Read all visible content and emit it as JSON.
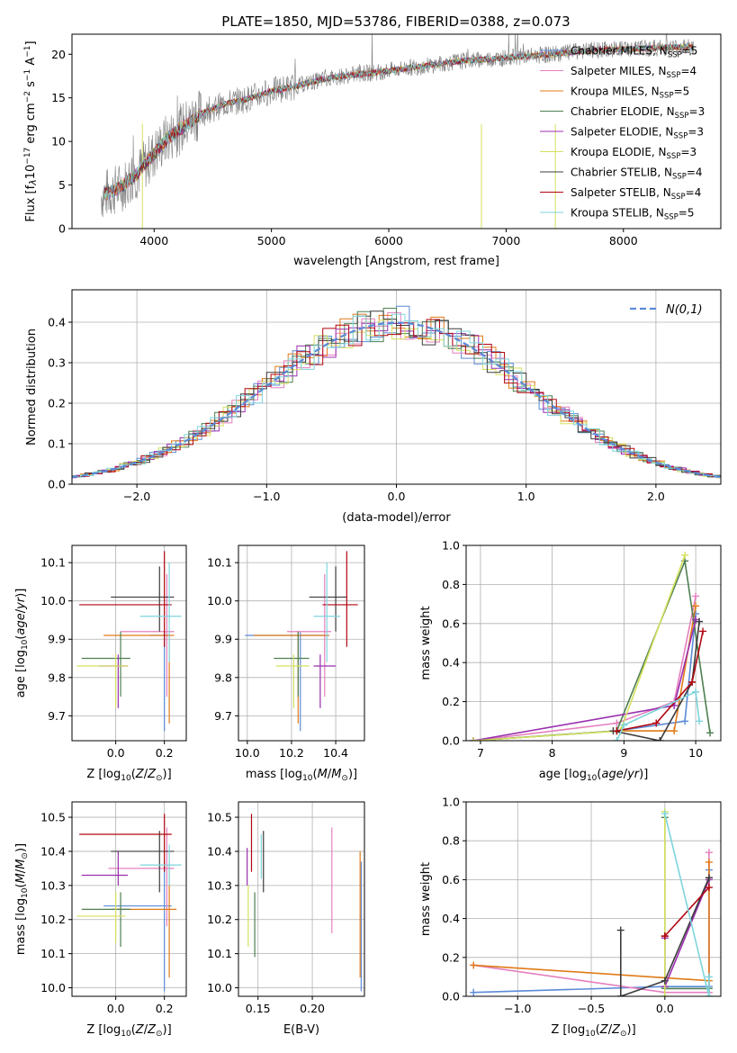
{
  "title": "PLATE=1850, MJD=53786, FIBERID=0388, z=0.073",
  "series": [
    {
      "id": "cm",
      "label": "Chabrier MILES, N",
      "sub": "SSP",
      "suffix": "=5",
      "color": "#5b8bd8"
    },
    {
      "id": "sm",
      "label": "Salpeter MILES, N",
      "sub": "SSP",
      "suffix": "=4",
      "color": "#e57fbe"
    },
    {
      "id": "km",
      "label": "Kroupa MILES, N",
      "sub": "SSP",
      "suffix": "=5",
      "color": "#e07b18"
    },
    {
      "id": "ce",
      "label": "Chabrier ELODIE, N",
      "sub": "SSP",
      "suffix": "=3",
      "color": "#4e7f52"
    },
    {
      "id": "se",
      "label": "Salpeter ELODIE, N",
      "sub": "SSP",
      "suffix": "=3",
      "color": "#9b2fae"
    },
    {
      "id": "ke",
      "label": "Kroupa ELODIE, N",
      "sub": "SSP",
      "suffix": "=3",
      "color": "#d5e05e"
    },
    {
      "id": "cs",
      "label": "Chabrier STELIB, N",
      "sub": "SSP",
      "suffix": "=4",
      "color": "#3c3c3c"
    },
    {
      "id": "ss",
      "label": "Salpeter STELIB, N",
      "sub": "SSP",
      "suffix": "=4",
      "color": "#b1060f"
    },
    {
      "id": "ks",
      "label": "Kroupa STELIB, N",
      "sub": "SSP",
      "suffix": "=5",
      "color": "#7ed5dc"
    }
  ],
  "chart_data": [
    {
      "type": "line",
      "name": "spectrum",
      "xlabel": "wavelength [Angstrom, rest frame]",
      "ylabel": "Flux [f_λ 10^-17 erg cm^-2 s^-1 A^-1]",
      "xlim": [
        3300,
        8830
      ],
      "ylim": [
        0,
        22.3
      ],
      "xticks": [
        4000,
        5000,
        6000,
        7000,
        8000
      ],
      "yticks": [
        0,
        5,
        10,
        15,
        20
      ],
      "grid": false,
      "legend": "right",
      "x": [
        3550,
        3700,
        3850,
        4000,
        4100,
        4250,
        4400,
        4600,
        4800,
        5000,
        5200,
        5400,
        5600,
        5800,
        6000,
        6200,
        6400,
        6600,
        6800,
        7000,
        7200,
        7400,
        7600,
        7800,
        8000,
        8200,
        8400,
        8600
      ],
      "y": [
        3.8,
        4.6,
        6.2,
        8.6,
        10.2,
        11.7,
        13.2,
        14.3,
        14.9,
        15.8,
        16.3,
        17.0,
        17.5,
        17.8,
        18.1,
        18.5,
        18.8,
        19.2,
        19.4,
        19.6,
        19.8,
        20.0,
        20.3,
        20.5,
        20.6,
        20.7,
        20.8,
        20.8
      ]
    },
    {
      "type": "histogram",
      "name": "residuals",
      "xlabel": "(data-model)/error",
      "ylabel": "Normed distribution",
      "xlim": [
        -2.5,
        2.5
      ],
      "ylim": [
        0,
        0.48
      ],
      "xticks": [
        -2,
        -1,
        0,
        1,
        2
      ],
      "yticks": [
        0,
        0.1,
        0.2,
        0.3,
        0.4
      ],
      "grid": true,
      "legend": "top-right",
      "legend_label": "N(0,1)",
      "reference": {
        "name": "N(0,1)",
        "mean": 0,
        "std": 1,
        "color": "#5b8bd8"
      }
    },
    {
      "type": "scatter",
      "name": "age-vs-Z",
      "xlabel": "Z [log10(Z/Z_sun)]",
      "ylabel": "age [log10(age/yr)]",
      "xlim": [
        -0.18,
        0.29
      ],
      "ylim": [
        9.635,
        10.145
      ],
      "xticks": [
        0,
        0.2
      ],
      "yticks": [
        9.7,
        9.8,
        9.9,
        10.0,
        10.1
      ],
      "grid": true,
      "points": [
        {
          "s": "cm",
          "x": 0.2,
          "xe": [
            0.14,
            0.22
          ],
          "y": 9.91,
          "ye": [
            9.66,
            9.92
          ]
        },
        {
          "s": "sm",
          "x": 0.21,
          "xe": [
            0.02,
            0.24
          ],
          "y": 9.92,
          "ye": [
            9.75,
            10.07
          ]
        },
        {
          "s": "km",
          "x": 0.22,
          "xe": [
            -0.05,
            0.24
          ],
          "y": 9.91,
          "ye": [
            9.68,
            9.92
          ]
        },
        {
          "s": "ce",
          "x": 0.02,
          "xe": [
            -0.14,
            0.06
          ],
          "y": 9.85,
          "ye": [
            9.75,
            9.92
          ]
        },
        {
          "s": "se",
          "x": 0.01,
          "xe": [
            -0.07,
            0.05
          ],
          "y": 9.83,
          "ye": [
            9.72,
            9.86
          ]
        },
        {
          "s": "ke",
          "x": 0.0,
          "xe": [
            -0.16,
            0.05
          ],
          "y": 9.83,
          "ye": [
            9.72,
            9.86
          ]
        },
        {
          "s": "cs",
          "x": 0.18,
          "xe": [
            -0.02,
            0.24
          ],
          "y": 10.01,
          "ye": [
            9.92,
            10.09
          ]
        },
        {
          "s": "ss",
          "x": 0.2,
          "xe": [
            -0.15,
            0.23
          ],
          "y": 9.99,
          "ye": [
            9.88,
            10.13
          ]
        },
        {
          "s": "ks",
          "x": 0.22,
          "xe": [
            0.1,
            0.27
          ],
          "y": 9.96,
          "ye": [
            9.84,
            10.1
          ]
        }
      ]
    },
    {
      "type": "scatter",
      "name": "age-vs-mass",
      "xlabel": "mass [log10(M/M_sun)]",
      "ylabel": "",
      "xlim": [
        9.96,
        10.53
      ],
      "ylim": [
        9.635,
        10.145
      ],
      "xticks": [
        10.0,
        10.2,
        10.4
      ],
      "yticks": [
        9.7,
        9.8,
        9.9,
        10.0,
        10.1
      ],
      "grid": true,
      "points": [
        {
          "s": "cm",
          "x": 10.24,
          "xe": [
            9.99,
            10.37
          ],
          "y": 9.91,
          "ye": [
            9.66,
            9.92
          ]
        },
        {
          "s": "sm",
          "x": 10.35,
          "xe": [
            10.18,
            10.38
          ],
          "y": 9.92,
          "ye": [
            9.75,
            10.07
          ]
        },
        {
          "s": "km",
          "x": 10.23,
          "xe": [
            10.03,
            10.37
          ],
          "y": 9.91,
          "ye": [
            9.68,
            9.92
          ]
        },
        {
          "s": "ce",
          "x": 10.23,
          "xe": [
            10.12,
            10.28
          ],
          "y": 9.85,
          "ye": [
            9.75,
            9.92
          ]
        },
        {
          "s": "se",
          "x": 10.33,
          "xe": [
            10.3,
            10.4
          ],
          "y": 9.83,
          "ye": [
            9.72,
            9.86
          ]
        },
        {
          "s": "ke",
          "x": 10.21,
          "xe": [
            10.13,
            10.28
          ],
          "y": 9.83,
          "ye": [
            9.72,
            9.86
          ]
        },
        {
          "s": "cs",
          "x": 10.4,
          "xe": [
            10.28,
            10.45
          ],
          "y": 10.01,
          "ye": [
            9.92,
            10.09
          ]
        },
        {
          "s": "ss",
          "x": 10.45,
          "xe": [
            10.34,
            10.5
          ],
          "y": 9.99,
          "ye": [
            9.88,
            10.13
          ]
        },
        {
          "s": "ks",
          "x": 10.36,
          "xe": [
            10.3,
            10.42
          ],
          "y": 9.96,
          "ye": [
            9.84,
            10.1
          ]
        }
      ]
    },
    {
      "type": "line",
      "name": "mass-weight-vs-age",
      "xlabel": "age [log10(age/yr)]",
      "ylabel": "mass weight",
      "xlim": [
        6.8,
        10.35
      ],
      "ylim": [
        0,
        1.0
      ],
      "xticks": [
        7,
        8,
        9,
        10
      ],
      "yticks": [
        0,
        0.2,
        0.4,
        0.6,
        0.8,
        1.0
      ],
      "grid": true,
      "series": [
        {
          "s": "cm",
          "x": [
            6.9,
            8.9,
            9.85,
            10.0
          ],
          "y": [
            0.0,
            0.05,
            0.1,
            0.65
          ]
        },
        {
          "s": "sm",
          "x": [
            6.9,
            8.9,
            9.7,
            10.0
          ],
          "y": [
            0.0,
            0.09,
            0.2,
            0.74
          ]
        },
        {
          "s": "km",
          "x": [
            8.9,
            9.7,
            10.0
          ],
          "y": [
            0.05,
            0.05,
            0.69
          ]
        },
        {
          "s": "ce",
          "x": [
            6.9,
            8.9,
            9.85,
            10.2
          ],
          "y": [
            0.0,
            0.05,
            0.92,
            0.04
          ]
        },
        {
          "s": "se",
          "x": [
            6.9,
            9.7,
            10.0
          ],
          "y": [
            0.0,
            0.18,
            0.62
          ]
        },
        {
          "s": "ke",
          "x": [
            6.9,
            8.95,
            9.85
          ],
          "y": [
            0.0,
            0.05,
            0.95
          ]
        },
        {
          "s": "cs",
          "x": [
            8.85,
            9.5,
            9.95,
            10.05
          ],
          "y": [
            0.05,
            0.0,
            0.3,
            0.61
          ]
        },
        {
          "s": "ss",
          "x": [
            8.9,
            9.45,
            9.95,
            10.1
          ],
          "y": [
            0.05,
            0.09,
            0.3,
            0.56
          ]
        },
        {
          "s": "ks",
          "x": [
            8.9,
            9.0,
            10.0,
            10.05
          ],
          "y": [
            0.0,
            0.08,
            0.25,
            0.1
          ]
        }
      ]
    },
    {
      "type": "scatter",
      "name": "mass-vs-Z",
      "xlabel": "Z [log10(Z/Z_sun)]",
      "ylabel": "mass [log10(M/M_sun)]",
      "xlim": [
        -0.18,
        0.29
      ],
      "ylim": [
        9.975,
        10.545
      ],
      "xticks": [
        0,
        0.2
      ],
      "yticks": [
        10.0,
        10.1,
        10.2,
        10.3,
        10.4,
        10.5
      ],
      "grid": true,
      "points": [
        {
          "s": "cm",
          "x": 0.2,
          "xe": [
            -0.05,
            0.23
          ],
          "y": 10.24,
          "ye": [
            9.99,
            10.37
          ]
        },
        {
          "s": "sm",
          "x": 0.21,
          "xe": [
            -0.03,
            0.24
          ],
          "y": 10.35,
          "ye": [
            10.18,
            10.47
          ]
        },
        {
          "s": "km",
          "x": 0.22,
          "xe": [
            -0.02,
            0.25
          ],
          "y": 10.23,
          "ye": [
            10.03,
            10.37
          ]
        },
        {
          "s": "ce",
          "x": 0.02,
          "xe": [
            -0.14,
            0.06
          ],
          "y": 10.23,
          "ye": [
            10.12,
            10.28
          ]
        },
        {
          "s": "se",
          "x": 0.01,
          "xe": [
            -0.14,
            0.05
          ],
          "y": 10.33,
          "ye": [
            10.3,
            10.4
          ]
        },
        {
          "s": "ke",
          "x": 0.0,
          "xe": [
            -0.16,
            0.04
          ],
          "y": 10.21,
          "ye": [
            10.13,
            10.28
          ]
        },
        {
          "s": "cs",
          "x": 0.18,
          "xe": [
            -0.02,
            0.24
          ],
          "y": 10.4,
          "ye": [
            10.28,
            10.46
          ]
        },
        {
          "s": "ss",
          "x": 0.2,
          "xe": [
            -0.15,
            0.23
          ],
          "y": 10.45,
          "ye": [
            10.34,
            10.51
          ]
        },
        {
          "s": "ks",
          "x": 0.22,
          "xe": [
            0.1,
            0.27
          ],
          "y": 10.36,
          "ye": [
            10.3,
            10.42
          ]
        }
      ]
    },
    {
      "type": "scatter",
      "name": "mass-vs-ebv",
      "xlabel": "E(B-V)",
      "ylabel": "",
      "xlim": [
        0.132,
        0.248
      ],
      "ylim": [
        9.975,
        10.545
      ],
      "xticks": [
        0.15,
        0.2
      ],
      "yticks": [
        10.0,
        10.1,
        10.2,
        10.3,
        10.4,
        10.5
      ],
      "grid": true,
      "points": [
        {
          "s": "cm",
          "x": 0.245,
          "ye": [
            9.99,
            10.37
          ]
        },
        {
          "s": "sm",
          "x": 0.218,
          "ye": [
            10.16,
            10.47
          ]
        },
        {
          "s": "km",
          "x": 0.244,
          "ye": [
            10.03,
            10.4
          ]
        },
        {
          "s": "ce",
          "x": 0.147,
          "ye": [
            10.09,
            10.28
          ]
        },
        {
          "s": "se",
          "x": 0.14,
          "ye": [
            10.3,
            10.41
          ]
        },
        {
          "s": "ke",
          "x": 0.141,
          "ye": [
            10.12,
            10.3
          ]
        },
        {
          "s": "cs",
          "x": 0.155,
          "ye": [
            10.28,
            10.46
          ]
        },
        {
          "s": "ss",
          "x": 0.144,
          "ye": [
            10.34,
            10.51
          ]
        },
        {
          "s": "ks",
          "x": 0.153,
          "ye": [
            10.32,
            10.45
          ]
        }
      ]
    },
    {
      "type": "line",
      "name": "mass-weight-vs-Z",
      "xlabel": "Z [log10(Z/Z_sun)]",
      "ylabel": "mass weight",
      "xlim": [
        -1.35,
        0.38
      ],
      "ylim": [
        0,
        1.0
      ],
      "xticks": [
        -1.0,
        -0.5,
        0.0
      ],
      "yticks": [
        0,
        0.2,
        0.4,
        0.6,
        0.8,
        1.0
      ],
      "grid": true,
      "series": [
        {
          "s": "cm",
          "x": [
            -1.3,
            0.0,
            0.3,
            0.3
          ],
          "y": [
            0.02,
            0.05,
            0.05,
            0.65
          ]
        },
        {
          "s": "sm",
          "x": [
            -1.3,
            0.0,
            0.3,
            0.3
          ],
          "y": [
            0.16,
            0.02,
            0.02,
            0.74
          ]
        },
        {
          "s": "km",
          "x": [
            -1.3,
            0.3,
            0.3
          ],
          "y": [
            0.16,
            0.08,
            0.69
          ]
        },
        {
          "s": "ce",
          "x": [
            0.0,
            0.0,
            0.3
          ],
          "y": [
            0.92,
            0.04,
            0.04
          ]
        },
        {
          "s": "se",
          "x": [
            0.0,
            0.0,
            0.3
          ],
          "y": [
            0.3,
            0.05,
            0.6
          ]
        },
        {
          "s": "ke",
          "x": [
            0.0,
            0.0
          ],
          "y": [
            0.0,
            0.95
          ]
        },
        {
          "s": "cs",
          "x": [
            -0.3,
            -0.3,
            0.0,
            0.3
          ],
          "y": [
            0.34,
            0.0,
            0.08,
            0.61
          ]
        },
        {
          "s": "ss",
          "x": [
            0.0,
            0.0,
            0.3
          ],
          "y": [
            0.31,
            0.31,
            0.56
          ]
        },
        {
          "s": "ks",
          "x": [
            0.0,
            0.3,
            0.3
          ],
          "y": [
            0.94,
            0.0,
            0.1
          ]
        }
      ]
    }
  ]
}
